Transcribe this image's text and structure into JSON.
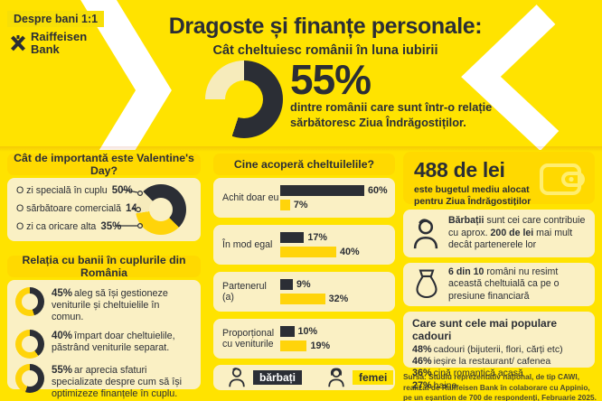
{
  "colors": {
    "background": "#FFE300",
    "deep_yellow": "#FFD900",
    "pale_card": "#FAF0C4",
    "dark": "#2B2E35",
    "gold_bar": "#FFD40A",
    "cream_segment": "#F6EBBB",
    "chevron": "#FFFFFF"
  },
  "brand": {
    "tag": "Despre bani 1:1",
    "bank_line1": "Raiffeisen",
    "bank_line2": "Bank"
  },
  "header": {
    "title": "Dragoste și finanțe personale:",
    "subtitle": "Cât cheltuiesc românii în luna iubirii",
    "stat_value": "55%",
    "stat_caption_line1": "dintre românii care sunt într-o relație",
    "stat_caption_line2": "sărbătoresc Ziua Îndrăgostiților."
  },
  "valentine": {
    "title": "Cât de importantă este Valentine's Day?",
    "items": [
      {
        "label": "O zi specială în cuplu",
        "value": "50%"
      },
      {
        "label": "O sărbătoare comercială",
        "value": "14%"
      },
      {
        "label": "O zi ca oricare alta",
        "value": "35%"
      }
    ]
  },
  "relation": {
    "title": "Relația cu banii în cuplurile din România",
    "items": [
      {
        "pct": "45%",
        "pct_num": 45,
        "text": "aleg să își gestioneze veniturile și cheltuielile în comun."
      },
      {
        "pct": "40%",
        "pct_num": 40,
        "text": "împart doar cheltuielile, păstrând veniturile separat."
      },
      {
        "pct": "55%",
        "pct_num": 55,
        "text": "ar aprecia sfaturi specializate despre cum să își optimizeze finanțele în cuplu."
      }
    ]
  },
  "expenses": {
    "title": "Cine acoperă cheltuilelile?",
    "groups": [
      {
        "label": "Achit doar eu",
        "men": 60,
        "men_label": "60%",
        "women": 7,
        "women_label": "7%"
      },
      {
        "label": "În mod egal",
        "men": 17,
        "men_label": "17%",
        "women": 40,
        "women_label": "40%"
      },
      {
        "label": "Partenerul (a)",
        "men": 9,
        "men_label": "9%",
        "women": 32,
        "women_label": "32%"
      },
      {
        "label": "Proporțional cu veniturile",
        "men": 10,
        "men_label": "10%",
        "women": 19,
        "women_label": "19%"
      }
    ],
    "legend": {
      "men": "bărbați",
      "women": "femei"
    }
  },
  "budget": {
    "amount": "488 de lei",
    "caption_line1": "este bugetul mediu alocat",
    "caption_line2": "pentru Ziua Îndrăgostiților"
  },
  "men_contribute": {
    "bold1": "Bărbații",
    "text1": " sunt cei care contribuie cu aprox. ",
    "bold2": "200 de lei",
    "text2": " mai mult decât partenerele lor"
  },
  "no_pressure": {
    "bold": "6 din 10",
    "text": " români nu resimt această cheltuială ca pe o presiune financiară"
  },
  "gifts": {
    "title": "Care sunt cele mai populare cadouri",
    "items": [
      {
        "pct": "48%",
        "text": "cadouri (bijuterii, flori, cărți etc)"
      },
      {
        "pct": "46%",
        "text": "ieșire la restaurant/ cafenea"
      },
      {
        "pct": "36%",
        "text": "cină romantică acasă"
      },
      {
        "pct": "27%",
        "text": "haine"
      }
    ]
  },
  "source": {
    "line1": "Sursa: Studiu reprezentativ național, de tip CAWI,",
    "line2": "realizat de Raiffeisen Bank în colaborare cu Appinio,",
    "line3": "pe un eșantion de 700 de respondenți, Februarie 2025."
  },
  "chart_data": [
    {
      "type": "pie",
      "title": "55% dintre românii care sunt într-o relație sărbătoresc Ziua Îndrăgostiților.",
      "categories": [
        "sărbătoresc",
        "nu sărbătoresc"
      ],
      "values": [
        55,
        45
      ],
      "donut": true
    },
    {
      "type": "pie",
      "title": "Cât de importantă este Valentine's Day?",
      "categories": [
        "O zi specială în cuplu",
        "O sărbătoare comercială",
        "O zi ca oricare alta"
      ],
      "values": [
        50,
        14,
        35
      ],
      "donut": true
    },
    {
      "type": "bar",
      "title": "Cine acoperă cheltuilelile?",
      "categories": [
        "Achit doar eu",
        "În mod egal",
        "Partenerul (a)",
        "Proporțional cu veniturile"
      ],
      "series": [
        {
          "name": "bărbați",
          "values": [
            60,
            17,
            9,
            10
          ]
        },
        {
          "name": "femei",
          "values": [
            7,
            40,
            32,
            19
          ]
        }
      ],
      "unit": "%",
      "orientation": "horizontal",
      "legend_position": "bottom"
    },
    {
      "type": "bar",
      "title": "Relația cu banii în cuplurile din România",
      "categories": [
        "aleg să își gestioneze veniturile și cheltuielile în comun.",
        "împart doar cheltuielile, păstrând veniturile separat.",
        "ar aprecia sfaturi specializate despre cum să își optimizeze finanțele în cuplu."
      ],
      "values": [
        45,
        40,
        55
      ],
      "unit": "%"
    },
    {
      "type": "bar",
      "title": "Care sunt cele mai populare cadouri",
      "categories": [
        "cadouri (bijuterii, flori, cărți etc)",
        "ieșire la restaurant/ cafenea",
        "cină romantică acasă",
        "haine"
      ],
      "values": [
        48,
        46,
        36,
        27
      ],
      "unit": "%"
    }
  ]
}
